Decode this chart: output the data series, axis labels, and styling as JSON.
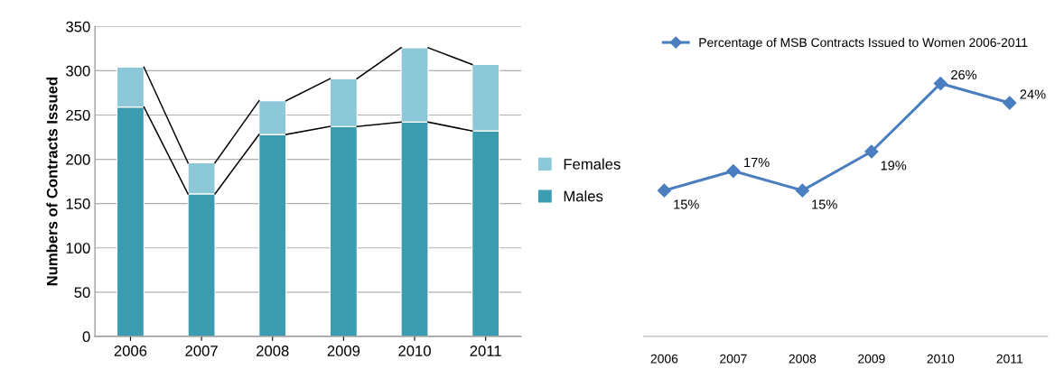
{
  "chart_data": [
    {
      "type": "bar",
      "stacked": true,
      "ylabel": "Numbers of Contracts Issued",
      "categories": [
        "2006",
        "2007",
        "2008",
        "2009",
        "2010",
        "2011"
      ],
      "series": [
        {
          "name": "Males",
          "color": "#3b9cb0",
          "values": [
            259,
            161,
            228,
            237,
            242,
            232
          ]
        },
        {
          "name": "Females",
          "color": "#8cc8d8",
          "values": [
            45,
            35,
            38,
            54,
            84,
            75
          ]
        }
      ],
      "ylim": [
        0,
        350
      ],
      "yticks": [
        0,
        50,
        100,
        150,
        200,
        250,
        300,
        350
      ],
      "grid": "y",
      "legend": "right"
    },
    {
      "type": "line",
      "categories": [
        "2006",
        "2007",
        "2008",
        "2009",
        "2010",
        "2011"
      ],
      "series": [
        {
          "name": "Percentage of MSB Contracts Issued to Women 2006-2011",
          "color": "#4a7ebf",
          "values": [
            15,
            17,
            15,
            19,
            26,
            24
          ],
          "value_labels": [
            "15%",
            "17%",
            "15%",
            "19%",
            "26%",
            "24%"
          ]
        }
      ],
      "tick_labels": "x",
      "marker": "diamond",
      "legend": "top"
    }
  ]
}
